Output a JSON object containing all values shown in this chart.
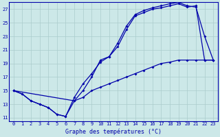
{
  "bg_color": "#cce8e8",
  "grid_color": "#aacccc",
  "line_color": "#0000aa",
  "x_label": "Graphe des températures (°C)",
  "xlim": [
    -0.5,
    23.5
  ],
  "ylim": [
    10.5,
    28.0
  ],
  "yticks": [
    11,
    13,
    15,
    17,
    19,
    21,
    23,
    25,
    27
  ],
  "xticks": [
    0,
    1,
    2,
    3,
    4,
    5,
    6,
    7,
    8,
    9,
    10,
    11,
    12,
    13,
    14,
    15,
    16,
    17,
    18,
    19,
    20,
    21,
    22,
    23
  ],
  "line1_x": [
    0,
    1,
    2,
    3,
    4,
    5,
    6,
    7,
    8,
    9,
    10,
    11,
    12,
    13,
    14,
    15,
    16,
    17,
    18,
    19,
    20,
    21,
    22,
    23
  ],
  "line1_y": [
    15.0,
    14.5,
    13.5,
    13.0,
    12.5,
    11.5,
    11.2,
    14.0,
    16.0,
    17.5,
    19.2,
    20.0,
    22.0,
    24.5,
    26.2,
    26.8,
    27.2,
    27.5,
    27.8,
    28.0,
    27.5,
    27.3,
    23.0,
    19.5
  ],
  "line2_x": [
    0,
    7,
    8,
    9,
    10,
    11,
    12,
    13,
    14,
    15,
    16,
    17,
    18,
    19,
    20,
    21,
    22,
    23
  ],
  "line2_y": [
    15.0,
    13.5,
    15.0,
    17.0,
    19.5,
    20.0,
    21.5,
    24.0,
    26.0,
    26.5,
    27.0,
    27.2,
    27.5,
    27.8,
    27.3,
    27.5,
    19.5,
    19.5
  ],
  "line3_x": [
    0,
    1,
    2,
    3,
    4,
    5,
    6,
    7,
    8,
    9,
    10,
    11,
    12,
    13,
    14,
    15,
    16,
    17,
    18,
    19,
    20,
    21,
    22,
    23
  ],
  "line3_y": [
    15.0,
    14.5,
    13.5,
    13.0,
    12.5,
    11.5,
    11.2,
    13.5,
    14.0,
    15.0,
    15.5,
    16.0,
    16.5,
    17.0,
    17.5,
    18.0,
    18.5,
    19.0,
    19.2,
    19.5,
    19.5,
    19.5,
    19.5,
    19.5
  ],
  "tick_fontsize": 5,
  "label_fontsize": 6,
  "marker_size": 2.0,
  "line_width": 0.9
}
